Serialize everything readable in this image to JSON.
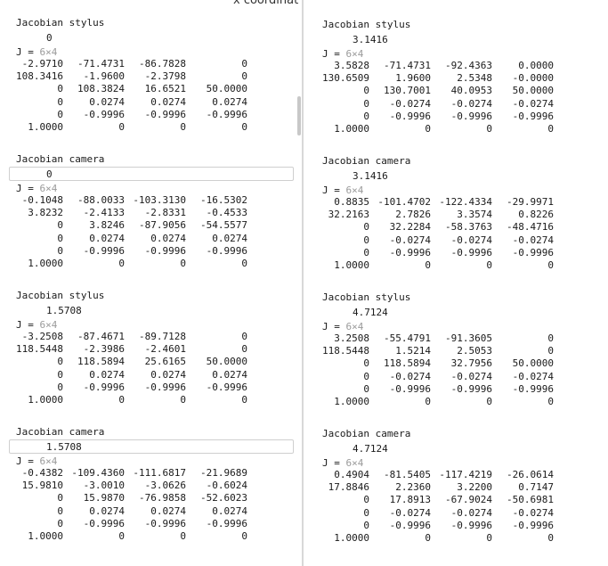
{
  "top_fragment": "x coordinat",
  "left": [
    {
      "title": "Jacobian stylus",
      "value": "0",
      "label": "J = ",
      "dims": "6×4",
      "rows": [
        [
          "-2.9710",
          "-71.4731",
          "-86.7828",
          "0"
        ],
        [
          "108.3416",
          "-1.9600",
          "-2.3798",
          "0"
        ],
        [
          "0",
          "108.3824",
          "16.6521",
          "50.0000"
        ],
        [
          "0",
          "0.0274",
          "0.0274",
          "0.0274"
        ],
        [
          "0",
          "-0.9996",
          "-0.9996",
          "-0.9996"
        ],
        [
          "1.0000",
          "0",
          "0",
          "0"
        ]
      ]
    },
    {
      "title": "Jacobian camera",
      "value": "0",
      "label": "J = ",
      "dims": "6×4",
      "rows": [
        [
          "-0.1048",
          "-88.0033",
          "-103.3130",
          "-16.5302"
        ],
        [
          "3.8232",
          "-2.4133",
          "-2.8331",
          "-0.4533"
        ],
        [
          "0",
          "3.8246",
          "-87.9056",
          "-54.5577"
        ],
        [
          "0",
          "0.0274",
          "0.0274",
          "0.0274"
        ],
        [
          "0",
          "-0.9996",
          "-0.9996",
          "-0.9996"
        ],
        [
          "1.0000",
          "0",
          "0",
          "0"
        ]
      ]
    },
    {
      "title": "Jacobian stylus",
      "value": "1.5708",
      "label": "J = ",
      "dims": "6×4",
      "rows": [
        [
          "-3.2508",
          "-87.4671",
          "-89.7128",
          "0"
        ],
        [
          "118.5448",
          "-2.3986",
          "-2.4601",
          "0"
        ],
        [
          "0",
          "118.5894",
          "25.6165",
          "50.0000"
        ],
        [
          "0",
          "0.0274",
          "0.0274",
          "0.0274"
        ],
        [
          "0",
          "-0.9996",
          "-0.9996",
          "-0.9996"
        ],
        [
          "1.0000",
          "0",
          "0",
          "0"
        ]
      ]
    },
    {
      "title": "Jacobian camera",
      "value": "1.5708",
      "label": "J = ",
      "dims": "6×4",
      "rows": [
        [
          "-0.4382",
          "-109.4360",
          "-111.6817",
          "-21.9689"
        ],
        [
          "15.9810",
          "-3.0010",
          "-3.0626",
          "-0.6024"
        ],
        [
          "0",
          "15.9870",
          "-76.9858",
          "-52.6023"
        ],
        [
          "0",
          "0.0274",
          "0.0274",
          "0.0274"
        ],
        [
          "0",
          "-0.9996",
          "-0.9996",
          "-0.9996"
        ],
        [
          "1.0000",
          "0",
          "0",
          "0"
        ]
      ]
    }
  ],
  "right": [
    {
      "title": "Jacobian stylus",
      "value": "3.1416",
      "label": "J = ",
      "dims": "6×4",
      "rows": [
        [
          "3.5828",
          "-71.4731",
          "-92.4363",
          "0.0000"
        ],
        [
          "130.6509",
          "1.9600",
          "2.5348",
          "-0.0000"
        ],
        [
          "0",
          "130.7001",
          "40.0953",
          "50.0000"
        ],
        [
          "0",
          "-0.0274",
          "-0.0274",
          "-0.0274"
        ],
        [
          "0",
          "-0.9996",
          "-0.9996",
          "-0.9996"
        ],
        [
          "1.0000",
          "0",
          "0",
          "0"
        ]
      ]
    },
    {
      "title": "Jacobian camera",
      "value": "3.1416",
      "label": "J = ",
      "dims": "6×4",
      "rows": [
        [
          "0.8835",
          "-101.4702",
          "-122.4334",
          "-29.9971"
        ],
        [
          "32.2163",
          "2.7826",
          "3.3574",
          "0.8226"
        ],
        [
          "0",
          "32.2284",
          "-58.3763",
          "-48.4716"
        ],
        [
          "0",
          "-0.0274",
          "-0.0274",
          "-0.0274"
        ],
        [
          "0",
          "-0.9996",
          "-0.9996",
          "-0.9996"
        ],
        [
          "1.0000",
          "0",
          "0",
          "0"
        ]
      ]
    },
    {
      "title": "Jacobian stylus",
      "value": "4.7124",
      "label": "J = ",
      "dims": "6×4",
      "rows": [
        [
          "3.2508",
          "-55.4791",
          "-91.3605",
          "0"
        ],
        [
          "118.5448",
          "1.5214",
          "2.5053",
          "0"
        ],
        [
          "0",
          "118.5894",
          "32.7956",
          "50.0000"
        ],
        [
          "0",
          "-0.0274",
          "-0.0274",
          "-0.0274"
        ],
        [
          "0",
          "-0.9996",
          "-0.9996",
          "-0.9996"
        ],
        [
          "1.0000",
          "0",
          "0",
          "0"
        ]
      ]
    },
    {
      "title": "Jacobian camera",
      "value": "4.7124",
      "label": "J = ",
      "dims": "6×4",
      "rows": [
        [
          "0.4904",
          "-81.5405",
          "-117.4219",
          "-26.0614"
        ],
        [
          "17.8846",
          "2.2360",
          "3.2200",
          "0.7147"
        ],
        [
          "0",
          "17.8913",
          "-67.9024",
          "-50.6981"
        ],
        [
          "0",
          "-0.0274",
          "-0.0274",
          "-0.0274"
        ],
        [
          "0",
          "-0.9996",
          "-0.9996",
          "-0.9996"
        ],
        [
          "1.0000",
          "0",
          "0",
          "0"
        ]
      ]
    }
  ]
}
